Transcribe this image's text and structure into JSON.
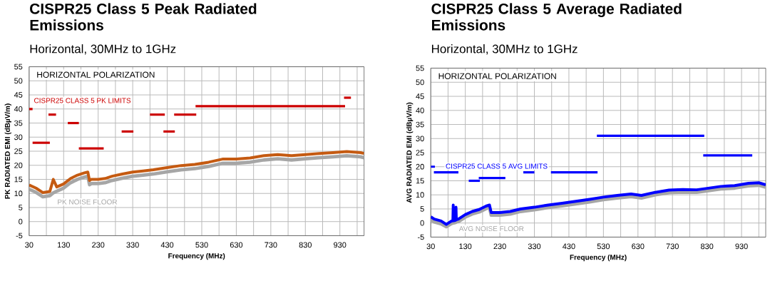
{
  "chart_data": [
    {
      "type": "line",
      "title": "CISPR25 Class 5 Peak Radiated Emissions",
      "subtitle": "Horizontal, 30MHz to 1GHz",
      "xlabel": "Frequency (MHz)",
      "ylabel": "PK RADIATED EMI (dBµV/m)",
      "xlim": [
        30,
        1000
      ],
      "ylim": [
        -5,
        55
      ],
      "xticks": [
        30,
        {
          "value": 80,
          "label": null
        },
        130,
        {
          "value": 180,
          "label": null
        },
        230,
        {
          "value": 280,
          "label": null
        },
        330,
        {
          "value": 380,
          "label": null
        },
        430,
        {
          "value": 480,
          "label": null
        },
        530,
        {
          "value": 580,
          "label": null
        },
        630,
        {
          "value": 680,
          "label": null
        },
        730,
        {
          "value": 780,
          "label": null
        },
        830,
        {
          "value": 880,
          "label": null
        },
        930,
        {
          "value": 980,
          "label": null
        }
      ],
      "yticks": [
        -5,
        0,
        5,
        10,
        15,
        20,
        25,
        30,
        35,
        40,
        45,
        50,
        55
      ],
      "grid": true,
      "annotations": [
        "HORIZONTAL POLARIZATION"
      ],
      "x": [
        30,
        50,
        70,
        90,
        100,
        110,
        130,
        150,
        170,
        190,
        200,
        205,
        210,
        230,
        250,
        270,
        300,
        330,
        360,
        390,
        430,
        470,
        510,
        550,
        590,
        630,
        670,
        710,
        750,
        790,
        830,
        870,
        910,
        950,
        990,
        1000
      ],
      "series": [
        {
          "name": "PK NOISE FLOOR",
          "color": "#a6a6a6",
          "values": [
            11.5,
            10.4,
            8.8,
            9.2,
            10.2,
            10.8,
            11.9,
            13.8,
            15.0,
            15.8,
            16.1,
            13.1,
            13.5,
            13.5,
            13.8,
            14.6,
            15.4,
            16.1,
            16.5,
            16.9,
            17.7,
            18.4,
            18.8,
            19.6,
            20.7,
            20.7,
            21.1,
            21.9,
            22.3,
            21.9,
            22.3,
            22.7,
            23.0,
            23.4,
            23.0,
            22.7
          ]
        },
        {
          "color": "#c55a11",
          "values": [
            13,
            11.9,
            10.3,
            10.7,
            15,
            12.3,
            13.4,
            15.3,
            16.5,
            17.3,
            17.6,
            14.6,
            15,
            15,
            15.3,
            16.1,
            16.9,
            17.6,
            18.0,
            18.4,
            19.2,
            19.9,
            20.3,
            21.1,
            22.2,
            22.2,
            22.6,
            23.4,
            23.8,
            23.4,
            23.8,
            24.2,
            24.5,
            24.9,
            24.5,
            24.2
          ]
        },
        {
          "name": "CISPR25 CLASS 5 PK LIMITS",
          "color": "#cc0000",
          "x": [
            30,
            40
          ],
          "values": [
            40,
            40
          ]
        },
        {
          "color": "#cc0000",
          "x": [
            40,
            90
          ],
          "values": [
            28,
            28
          ]
        },
        {
          "color": "#cc0000",
          "x": [
            86,
            108
          ],
          "values": [
            38,
            38
          ]
        },
        {
          "color": "#cc0000",
          "x": [
            142,
            174
          ],
          "values": [
            35,
            35
          ]
        },
        {
          "color": "#cc0000",
          "x": [
            174,
            246
          ],
          "values": [
            26,
            26
          ]
        },
        {
          "color": "#cc0000",
          "x": [
            298,
            332
          ],
          "values": [
            32,
            32
          ]
        },
        {
          "color": "#cc0000",
          "x": [
            380,
            423
          ],
          "values": [
            38,
            38
          ]
        },
        {
          "color": "#cc0000",
          "x": [
            419,
            452
          ],
          "values": [
            32,
            32
          ]
        },
        {
          "color": "#cc0000",
          "x": [
            450,
            514
          ],
          "values": [
            38,
            38
          ]
        },
        {
          "color": "#cc0000",
          "x": [
            512,
            945
          ],
          "values": [
            41,
            41
          ]
        },
        {
          "color": "#cc0000",
          "x": [
            942,
            962
          ],
          "values": [
            44,
            44
          ]
        }
      ]
    },
    {
      "type": "line",
      "title": "CISPR25 Class 5 Average Radiated Emissions",
      "subtitle": "Horizontal, 30MHz to 1GHz",
      "xlabel": "Frequency (MHz)",
      "ylabel": "AVG RADIATED EMI (dBµV/m)",
      "xlim": [
        30,
        1000
      ],
      "ylim": [
        -5,
        55
      ],
      "xticks": [
        30,
        {
          "value": 80,
          "label": null
        },
        130,
        {
          "value": 180,
          "label": null
        },
        230,
        {
          "value": 280,
          "label": null
        },
        330,
        {
          "value": 380,
          "label": null
        },
        430,
        {
          "value": 480,
          "label": null
        },
        530,
        {
          "value": 580,
          "label": null
        },
        630,
        {
          "value": 680,
          "label": null
        },
        730,
        {
          "value": 780,
          "label": null
        },
        830,
        {
          "value": 880,
          "label": null
        },
        930,
        {
          "value": 980,
          "label": null
        }
      ],
      "yticks": [
        -5,
        0,
        5,
        10,
        15,
        20,
        25,
        30,
        35,
        40,
        45,
        50,
        55
      ],
      "grid": true,
      "annotations": [
        "HORIZONTAL POLARIZATION"
      ],
      "x": [
        30,
        40,
        60,
        75,
        90,
        94,
        95,
        96,
        102,
        103,
        104,
        110,
        130,
        150,
        170,
        190,
        200,
        205,
        230,
        260,
        290,
        330,
        370,
        410,
        450,
        490,
        530,
        570,
        610,
        640,
        680,
        720,
        760,
        800,
        830,
        870,
        910,
        950,
        980,
        1000
      ],
      "series": [
        {
          "name": "AVG NOISE FLOOR",
          "color": "#a6a6a6",
          "values": [
            1.2,
            0.4,
            -0.3,
            -1.3,
            -0.2,
            0,
            0.2,
            0,
            0.2,
            0.4,
            0.4,
            0.5,
            2.1,
            3.2,
            3.9,
            5.1,
            5.5,
            2.8,
            2.8,
            3.2,
            4.1,
            4.7,
            5.5,
            6.1,
            6.8,
            7.5,
            8.3,
            8.9,
            9.4,
            8.9,
            10.0,
            10.8,
            11.0,
            10.9,
            11.4,
            12.1,
            12.4,
            13.2,
            13.4,
            12.7
          ]
        },
        {
          "color": "#0000ff",
          "values": [
            2.2,
            1.4,
            0.7,
            -0.5,
            0.7,
            0.8,
            6.4,
            0.8,
            1.0,
            5.6,
            1.2,
            1.4,
            3.0,
            4.1,
            4.8,
            6.0,
            6.4,
            3.7,
            3.7,
            4.1,
            5.0,
            5.6,
            6.4,
            7.0,
            7.7,
            8.4,
            9.2,
            9.8,
            10.3,
            9.8,
            10.9,
            11.7,
            11.9,
            11.8,
            12.3,
            13.0,
            13.3,
            14.1,
            14.3,
            13.6
          ]
        },
        {
          "name": "CISPR25 CLASS 5 AVG LIMITS",
          "color": "#0000ff",
          "x": [
            30,
            42
          ],
          "values": [
            20,
            20
          ]
        },
        {
          "color": "#0000ff",
          "x": [
            39,
            110
          ],
          "values": [
            18,
            18
          ]
        },
        {
          "color": "#0000ff",
          "x": [
            140,
            172
          ],
          "values": [
            15,
            15
          ]
        },
        {
          "color": "#0000ff",
          "x": [
            169,
            246
          ],
          "values": [
            16,
            16
          ]
        },
        {
          "color": "#0000ff",
          "x": [
            298,
            330
          ],
          "values": [
            18,
            18
          ]
        },
        {
          "color": "#0000ff",
          "x": [
            378,
            513
          ],
          "values": [
            18,
            18
          ]
        },
        {
          "color": "#0000ff",
          "x": [
            511,
            822
          ],
          "values": [
            31,
            31
          ]
        },
        {
          "color": "#0000ff",
          "x": [
            819,
            961
          ],
          "values": [
            24,
            24
          ]
        }
      ]
    }
  ]
}
